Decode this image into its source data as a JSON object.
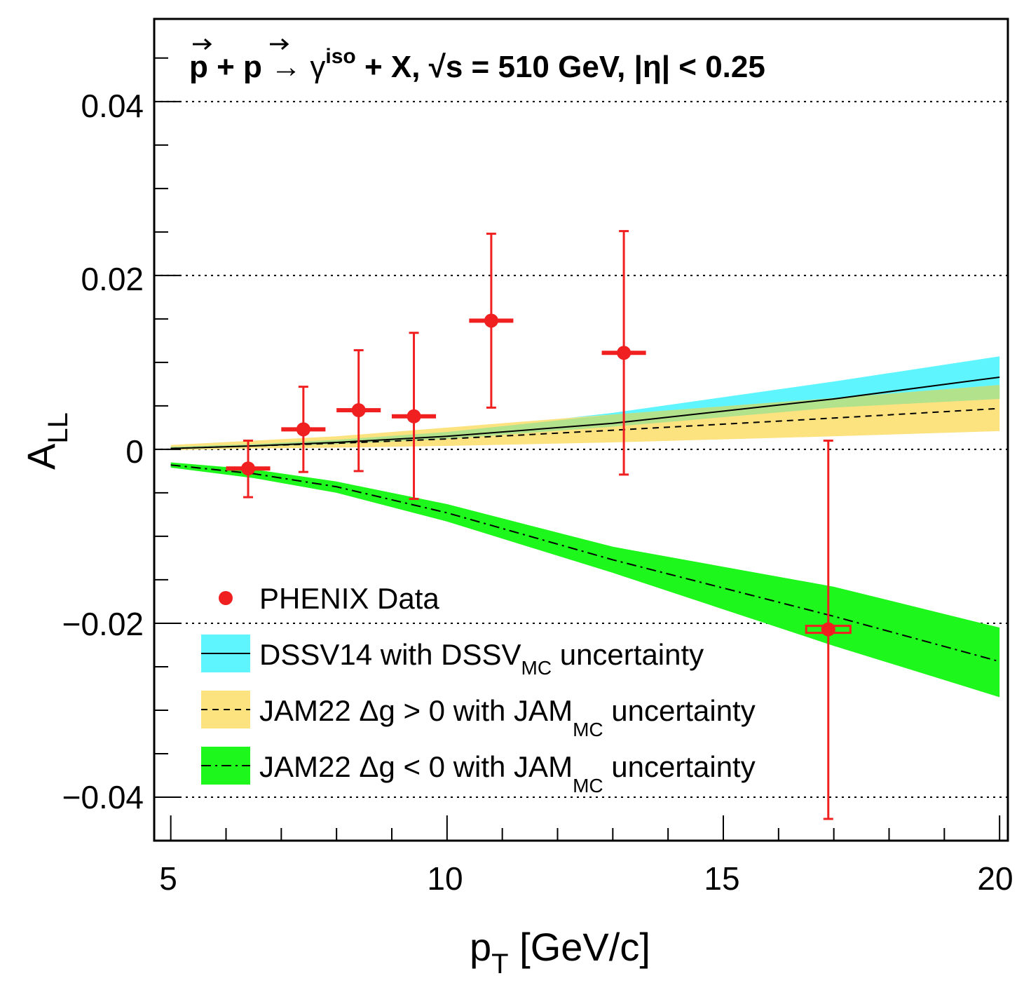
{
  "chart_data": {
    "type": "scatter",
    "title_parts": {
      "beam1": "p",
      "plus1": " + ",
      "beam2": "p",
      "arrow": " → ",
      "gamma": "γ",
      "iso": "iso",
      "rest1": " + X,  ",
      "sqrt": "√s",
      "energy": " = 510 GeV, |η| < 0.25"
    },
    "xlabel": {
      "main": "p",
      "sub": "T",
      "rest": " [GeV/c]"
    },
    "ylabel": {
      "main": "A",
      "sub": "LL"
    },
    "xlim": [
      4.7,
      20.15
    ],
    "ylim": [
      -0.045,
      0.0495
    ],
    "x_ticks": [
      5,
      10,
      15,
      20
    ],
    "x_tick_labels": [
      "5",
      "10",
      "15",
      "20"
    ],
    "y_ticks": [
      -0.04,
      -0.02,
      0,
      0.02,
      0.04
    ],
    "y_tick_labels": [
      "−0.04",
      "−0.02",
      "0",
      "0.02",
      "0.04"
    ],
    "grid": "horizontal dotted at major y ticks",
    "phenix_data": [
      {
        "x": 6.4,
        "y": -0.0022,
        "xerr": 0.4,
        "ylow": -0.0055,
        "yhigh": 0.001
      },
      {
        "x": 7.4,
        "y": 0.0023,
        "xerr": 0.4,
        "ylow": -0.0026,
        "yhigh": 0.0072
      },
      {
        "x": 8.4,
        "y": 0.0045,
        "xerr": 0.4,
        "ylow": -0.0025,
        "yhigh": 0.0114
      },
      {
        "x": 9.4,
        "y": 0.0038,
        "xerr": 0.4,
        "ylow": -0.0057,
        "yhigh": 0.0134
      },
      {
        "x": 10.8,
        "y": 0.0148,
        "xerr": 0.4,
        "ylow": 0.0048,
        "yhigh": 0.0248
      },
      {
        "x": 13.2,
        "y": 0.0111,
        "xerr": 0.4,
        "ylow": -0.0029,
        "yhigh": 0.0251
      },
      {
        "x": 16.9,
        "y": -0.0207,
        "xerr": 0.4,
        "ylow": -0.0425,
        "yhigh": 0.001,
        "open_box": true
      }
    ],
    "bands": [
      {
        "name": "DSSV14 with DSSV_MC uncertainty",
        "color": "#5ff5ff",
        "line": "solid",
        "x": [
          5,
          6.5,
          8,
          10,
          13,
          17,
          20
        ],
        "central": [
          0.0001,
          0.0004,
          0.0008,
          0.0015,
          0.003,
          0.0058,
          0.0083
        ],
        "low": [
          0.0,
          0.0003,
          0.0006,
          0.0012,
          0.0026,
          0.0048,
          0.0058
        ],
        "high": [
          0.0003,
          0.0006,
          0.0011,
          0.002,
          0.0042,
          0.0078,
          0.0107
        ]
      },
      {
        "name": "JAM22 Δg > 0 with JAM_MC uncertainty",
        "color": "#fde280",
        "line": "dashed",
        "x": [
          5,
          6.5,
          8,
          10,
          13,
          17,
          20
        ],
        "central": [
          0.0001,
          0.0004,
          0.0007,
          0.0012,
          0.0022,
          0.0036,
          0.0047
        ],
        "low": [
          -0.0001,
          0.0001,
          0.0002,
          0.0004,
          0.0008,
          0.0015,
          0.0021
        ],
        "high": [
          0.0005,
          0.001,
          0.0015,
          0.0025,
          0.004,
          0.0059,
          0.0074
        ]
      },
      {
        "name": "JAM22 Δg < 0 with JAM_MC uncertainty",
        "color": "#1df71c",
        "line": "dashdot",
        "x": [
          5,
          6.5,
          8,
          10,
          13,
          17,
          20
        ],
        "central": [
          -0.0018,
          -0.0028,
          -0.0043,
          -0.0073,
          -0.0127,
          -0.0192,
          -0.0244
        ],
        "low": [
          -0.0021,
          -0.0033,
          -0.005,
          -0.0083,
          -0.0142,
          -0.0226,
          -0.0285
        ],
        "high": [
          -0.0015,
          -0.0023,
          -0.0037,
          -0.0063,
          -0.0112,
          -0.0158,
          -0.0205
        ]
      }
    ],
    "legend": {
      "placement": "bottom-left",
      "entries": [
        {
          "text": "PHENIX Data"
        },
        {
          "text_main": "DSSV14 with DSSV",
          "text_sub": "MC",
          "text_after": " uncertainty"
        },
        {
          "text_main": "JAM22 Δg > 0 with JAM",
          "text_sub": "MC",
          "text_after": " uncertainty"
        },
        {
          "text_main": "JAM22 Δg < 0 with JAM",
          "text_sub": "MC",
          "text_after": " uncertainty"
        }
      ]
    },
    "colors": {
      "data": "#f02020",
      "overlap": "#b3e28d",
      "frame": "#000000"
    }
  }
}
